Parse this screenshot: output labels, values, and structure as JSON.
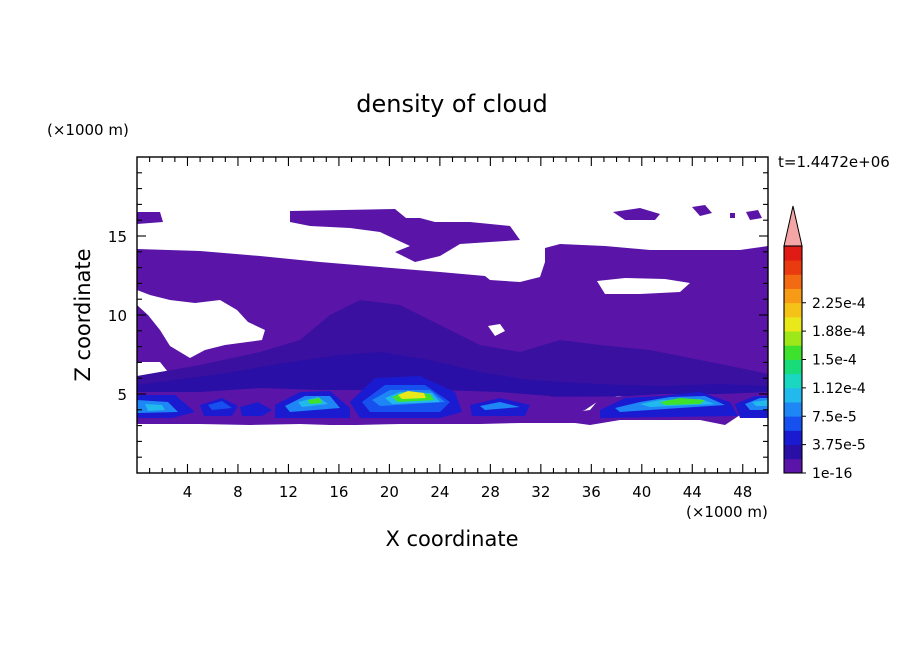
{
  "chart_data": {
    "type": "heatmap",
    "title": "density of cloud",
    "xlabel": "X coordinate",
    "ylabel": "Z coordinate",
    "x_unit": "(×1000 m)",
    "y_unit": "(×1000 m)",
    "time_label": "t=1.4472e+06",
    "xlim": [
      0,
      50
    ],
    "ylim": [
      0,
      20
    ],
    "x_ticks": [
      4,
      8,
      12,
      16,
      20,
      24,
      28,
      32,
      36,
      40,
      44,
      48
    ],
    "y_ticks": [
      5,
      10,
      15
    ],
    "colorbar": {
      "levels": [
        "1e-16",
        "3.75e-5",
        "7.5e-5",
        "1.12e-4",
        "1.5e-4",
        "1.88e-4",
        "2.25e-4"
      ],
      "colors": [
        "#5a14a8",
        "#2a0fa6",
        "#1a1bd0",
        "#1650ee",
        "#1f86f5",
        "#22b9ec",
        "#19d7c0",
        "#18dc7a",
        "#3ee22c",
        "#9ee81a",
        "#e8e81a",
        "#f5c218",
        "#f79a16",
        "#f26a12",
        "#ea3a10",
        "#e01a14"
      ],
      "overflow_color": "#f4a6a6"
    },
    "regions": [
      {
        "name": "upper-cloud-layer",
        "x_range": [
          0,
          50
        ],
        "z_range": [
          6.5,
          14
        ],
        "level": "1e-16"
      },
      {
        "name": "high-cirrus-left",
        "x_range": [
          0,
          2
        ],
        "z_range": [
          15.7,
          16.5
        ],
        "level": "1e-16"
      },
      {
        "name": "high-cirrus-mid",
        "x_range": [
          12.3,
          21.5
        ],
        "z_range": [
          15.5,
          16.5
        ],
        "level": "1e-16"
      },
      {
        "name": "high-cirrus-right",
        "x_range": [
          38,
          42
        ],
        "z_range": [
          16,
          16.6
        ],
        "level": "1e-16"
      },
      {
        "name": "cumulus-1",
        "x_range": [
          0,
          4
        ],
        "z_range": [
          3.5,
          5.5
        ],
        "level": "1.12e-4"
      },
      {
        "name": "cumulus-2",
        "x_range": [
          11,
          18
        ],
        "z_range": [
          3.5,
          5.5
        ],
        "level": "1.5e-4"
      },
      {
        "name": "cumulus-3",
        "x_range": [
          19,
          26
        ],
        "z_range": [
          3.5,
          6
        ],
        "level": "1.88e-4"
      },
      {
        "name": "cumulus-4",
        "x_range": [
          36,
          47
        ],
        "z_range": [
          3.5,
          5.2
        ],
        "level": "1.12e-4"
      },
      {
        "name": "cumulus-5",
        "x_range": [
          48,
          50
        ],
        "z_range": [
          3.5,
          5
        ],
        "level": "1.12e-4"
      }
    ]
  }
}
